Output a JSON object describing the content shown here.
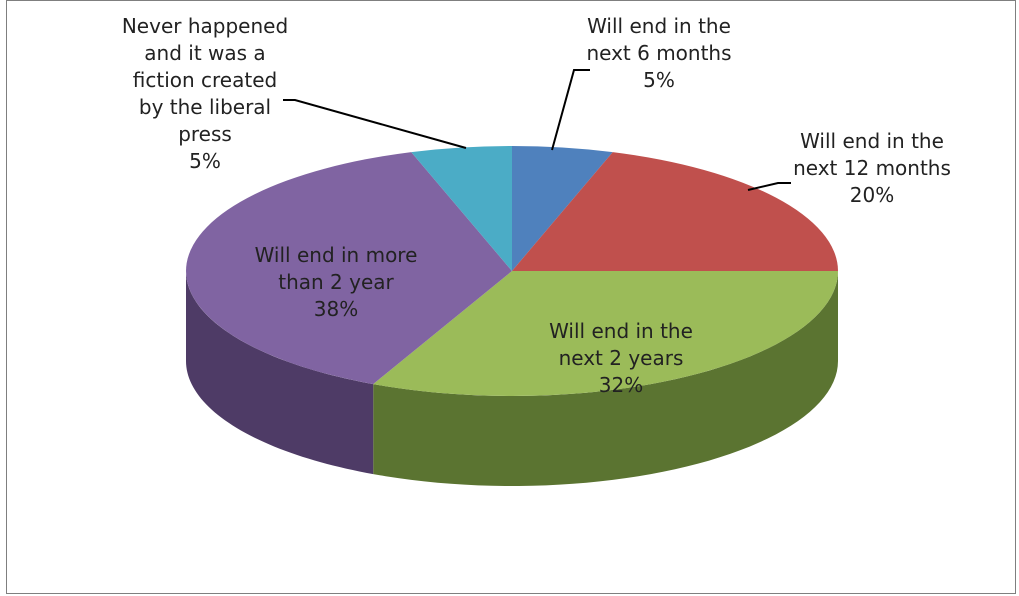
{
  "chart_data": {
    "type": "pie",
    "variant": "3d-exploded-none",
    "slices": [
      {
        "label_lines": [
          "Will end in the",
          "next 6 months",
          "5%"
        ],
        "label": "Will end in the next 6 months",
        "value": 5,
        "color": "#4f81bd",
        "side": "#2f4f77",
        "leader": true
      },
      {
        "label_lines": [
          "Will end in the",
          "next 12 months",
          "20%"
        ],
        "label": "Will end in the next 12 months",
        "value": 20,
        "color": "#c0504d",
        "side": "#7a2f2d",
        "leader": true
      },
      {
        "label_lines": [
          "Will end in the",
          "next 2 years",
          "32%"
        ],
        "label": "Will end in the next 2 years",
        "value": 32,
        "color": "#9bbb59",
        "side": "#5b7431",
        "leader": false
      },
      {
        "label_lines": [
          "Will end in more",
          "than 2 year",
          "38%"
        ],
        "label": "Will end in more than 2 year",
        "value": 38,
        "color": "#8064a2",
        "side": "#4e3b66",
        "leader": false
      },
      {
        "label_lines": [
          "Never happened",
          "and it was a",
          "fiction created",
          "by the liberal",
          "press",
          "5%"
        ],
        "label": "Never happened and it was a fiction created by the liberal press",
        "value": 5,
        "color": "#4bacc6",
        "side": "#2a6b7d",
        "leader": true
      }
    ],
    "start_angle_deg": 0,
    "direction": "clockwise"
  }
}
